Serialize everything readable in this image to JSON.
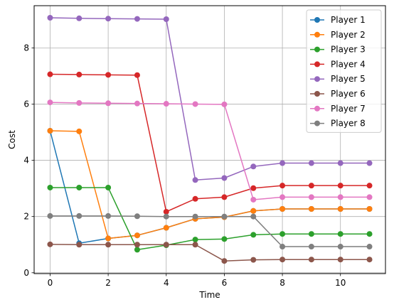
{
  "chart_data": {
    "type": "line",
    "title": "",
    "xlabel": "Time",
    "ylabel": "Cost",
    "xlim": [
      -0.55,
      11.55
    ],
    "ylim": [
      -0.03,
      9.5
    ],
    "xticks": [
      0,
      2,
      4,
      6,
      8,
      10
    ],
    "yticks": [
      0,
      2,
      4,
      6,
      8
    ],
    "grid": true,
    "legend_position": "top-right",
    "x": [
      0,
      1,
      2,
      3,
      4,
      5,
      6,
      7,
      8,
      9,
      10,
      11
    ],
    "series": [
      {
        "name": "Player 1",
        "color": "#1f77b4",
        "values": [
          5.05,
          1.05,
          1.22,
          1.33,
          1.6,
          1.92,
          1.98,
          2.2,
          2.27,
          2.27,
          2.27,
          2.27
        ]
      },
      {
        "name": "Player 2",
        "color": "#ff7f0e",
        "values": [
          5.05,
          5.03,
          1.22,
          1.33,
          1.6,
          1.92,
          1.98,
          2.2,
          2.27,
          2.27,
          2.27,
          2.27
        ]
      },
      {
        "name": "Player 3",
        "color": "#2ca02c",
        "values": [
          3.03,
          3.03,
          3.03,
          0.82,
          0.98,
          1.18,
          1.2,
          1.35,
          1.38,
          1.38,
          1.38,
          1.38
        ]
      },
      {
        "name": "Player 4",
        "color": "#d62728",
        "values": [
          7.06,
          7.05,
          7.04,
          7.03,
          2.17,
          2.63,
          2.69,
          3.01,
          3.1,
          3.1,
          3.1,
          3.1
        ]
      },
      {
        "name": "Player 5",
        "color": "#9467bd",
        "values": [
          9.07,
          9.05,
          9.04,
          9.03,
          9.02,
          3.3,
          3.37,
          3.78,
          3.9,
          3.9,
          3.9,
          3.9
        ]
      },
      {
        "name": "Player 6",
        "color": "#8c564b",
        "values": [
          1.01,
          1.0,
          1.0,
          1.0,
          1.0,
          1.0,
          0.42,
          0.46,
          0.47,
          0.47,
          0.47,
          0.47
        ]
      },
      {
        "name": "Player 7",
        "color": "#e377c2",
        "values": [
          6.06,
          6.04,
          6.03,
          6.02,
          6.01,
          6.0,
          5.99,
          2.6,
          2.69,
          2.69,
          2.69,
          2.69
        ]
      },
      {
        "name": "Player 8",
        "color": "#7f7f7f",
        "values": [
          2.02,
          2.02,
          2.02,
          2.01,
          2.0,
          2.0,
          2.0,
          2.0,
          0.93,
          0.93,
          0.93,
          0.93
        ]
      }
    ]
  }
}
